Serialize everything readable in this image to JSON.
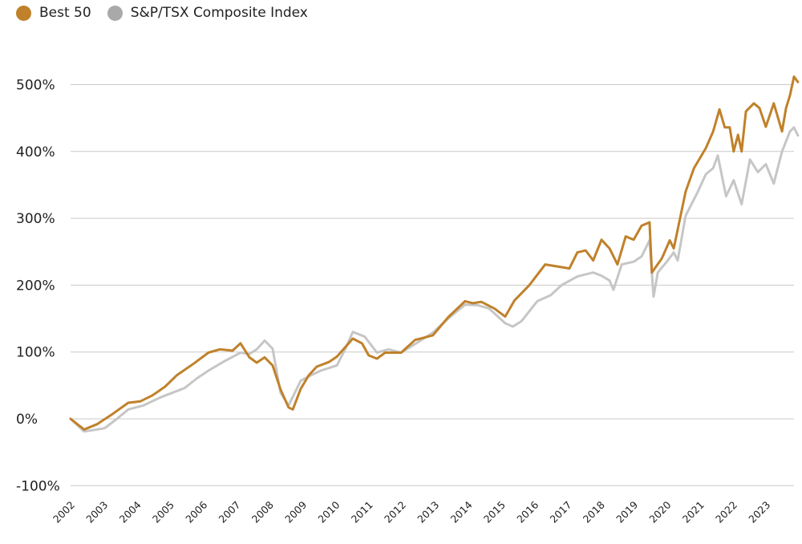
{
  "chart_data": {
    "type": "line",
    "title": "",
    "xlabel": "",
    "ylabel": "",
    "ylim": [
      -100,
      500
    ],
    "yticks": [
      "-100%",
      "0%",
      "100%",
      "200%",
      "300%",
      "400%",
      "500%"
    ],
    "ytick_values": [
      -100,
      0,
      100,
      200,
      300,
      400,
      500
    ],
    "xticks": [
      "2002",
      "2003",
      "2004",
      "2005",
      "2006",
      "2007",
      "2008",
      "2009",
      "2010",
      "2011",
      "2012",
      "2013",
      "2014",
      "2015",
      "2016",
      "2017",
      "2018",
      "2019",
      "2020",
      "2021",
      "2022",
      "2023"
    ],
    "grid": "horizontal",
    "legend_position": "top-left",
    "series": [
      {
        "name": "Best 50",
        "color": "#c0812b",
        "points": [
          [
            2002.0,
            0
          ],
          [
            2002.41,
            -16
          ],
          [
            2002.8,
            -8
          ],
          [
            2003.26,
            7
          ],
          [
            2003.74,
            24
          ],
          [
            2004.1,
            26
          ],
          [
            2004.47,
            35
          ],
          [
            2004.85,
            48
          ],
          [
            2005.2,
            65
          ],
          [
            2005.7,
            82
          ],
          [
            2006.16,
            99
          ],
          [
            2006.5,
            104
          ],
          [
            2006.89,
            102
          ],
          [
            2007.13,
            113
          ],
          [
            2007.4,
            92
          ],
          [
            2007.62,
            84
          ],
          [
            2007.86,
            92
          ],
          [
            2008.1,
            80
          ],
          [
            2008.34,
            44
          ],
          [
            2008.58,
            17
          ],
          [
            2008.71,
            14
          ],
          [
            2008.95,
            45
          ],
          [
            2009.19,
            65
          ],
          [
            2009.43,
            78
          ],
          [
            2009.8,
            85
          ],
          [
            2010.04,
            93
          ],
          [
            2010.52,
            120
          ],
          [
            2010.8,
            113
          ],
          [
            2011.0,
            95
          ],
          [
            2011.25,
            90
          ],
          [
            2011.5,
            99
          ],
          [
            2011.98,
            99
          ],
          [
            2012.4,
            118
          ],
          [
            2012.94,
            125
          ],
          [
            2013.4,
            152
          ],
          [
            2013.91,
            176
          ],
          [
            2014.15,
            173
          ],
          [
            2014.4,
            175
          ],
          [
            2014.8,
            165
          ],
          [
            2015.12,
            153
          ],
          [
            2015.4,
            177
          ],
          [
            2015.85,
            200
          ],
          [
            2016.33,
            231
          ],
          [
            2016.7,
            228
          ],
          [
            2017.06,
            225
          ],
          [
            2017.3,
            249
          ],
          [
            2017.55,
            252
          ],
          [
            2017.78,
            237
          ],
          [
            2018.03,
            268
          ],
          [
            2018.27,
            255
          ],
          [
            2018.51,
            231
          ],
          [
            2018.76,
            273
          ],
          [
            2019.0,
            268
          ],
          [
            2019.24,
            289
          ],
          [
            2019.48,
            294
          ],
          [
            2019.55,
            219
          ],
          [
            2019.85,
            240
          ],
          [
            2020.09,
            267
          ],
          [
            2020.21,
            255
          ],
          [
            2020.57,
            340
          ],
          [
            2020.82,
            375
          ],
          [
            2021.18,
            405
          ],
          [
            2021.4,
            430
          ],
          [
            2021.59,
            463
          ],
          [
            2021.75,
            436
          ],
          [
            2021.9,
            436
          ],
          [
            2022.02,
            400
          ],
          [
            2022.15,
            425
          ],
          [
            2022.26,
            400
          ],
          [
            2022.39,
            460
          ],
          [
            2022.63,
            472
          ],
          [
            2022.8,
            465
          ],
          [
            2022.99,
            437
          ],
          [
            2023.23,
            472
          ],
          [
            2023.48,
            430
          ],
          [
            2023.6,
            465
          ],
          [
            2023.72,
            484
          ],
          [
            2023.84,
            512
          ],
          [
            2023.96,
            504
          ]
        ]
      },
      {
        "name": "S&P/TSX Composite Index",
        "color": "#c6c6c6",
        "points": [
          [
            2002.0,
            0
          ],
          [
            2002.41,
            -19
          ],
          [
            2003.03,
            -14
          ],
          [
            2003.4,
            0
          ],
          [
            2003.74,
            14
          ],
          [
            2004.2,
            20
          ],
          [
            2004.71,
            32
          ],
          [
            2005.44,
            46
          ],
          [
            2005.8,
            60
          ],
          [
            2006.16,
            72
          ],
          [
            2006.6,
            85
          ],
          [
            2007.13,
            99
          ],
          [
            2007.4,
            97
          ],
          [
            2007.62,
            104
          ],
          [
            2007.86,
            117
          ],
          [
            2008.1,
            105
          ],
          [
            2008.34,
            39
          ],
          [
            2008.58,
            20
          ],
          [
            2008.95,
            57
          ],
          [
            2009.25,
            65
          ],
          [
            2009.55,
            72
          ],
          [
            2010.04,
            80
          ],
          [
            2010.3,
            105
          ],
          [
            2010.52,
            130
          ],
          [
            2010.88,
            123
          ],
          [
            2011.25,
            99
          ],
          [
            2011.6,
            104
          ],
          [
            2011.98,
            99
          ],
          [
            2012.5,
            115
          ],
          [
            2012.94,
            129
          ],
          [
            2013.4,
            150
          ],
          [
            2013.91,
            171
          ],
          [
            2014.3,
            170
          ],
          [
            2014.64,
            165
          ],
          [
            2015.12,
            143
          ],
          [
            2015.35,
            138
          ],
          [
            2015.61,
            146
          ],
          [
            2016.09,
            176
          ],
          [
            2016.5,
            185
          ],
          [
            2016.82,
            200
          ],
          [
            2017.3,
            213
          ],
          [
            2017.78,
            219
          ],
          [
            2018.03,
            214
          ],
          [
            2018.27,
            207
          ],
          [
            2018.39,
            193
          ],
          [
            2018.64,
            231
          ],
          [
            2019.0,
            235
          ],
          [
            2019.24,
            243
          ],
          [
            2019.48,
            267
          ],
          [
            2019.6,
            183
          ],
          [
            2019.73,
            219
          ],
          [
            2020.0,
            235
          ],
          [
            2020.21,
            249
          ],
          [
            2020.33,
            237
          ],
          [
            2020.57,
            304
          ],
          [
            2020.94,
            340
          ],
          [
            2021.18,
            366
          ],
          [
            2021.4,
            375
          ],
          [
            2021.54,
            394
          ],
          [
            2021.79,
            333
          ],
          [
            2022.02,
            357
          ],
          [
            2022.26,
            321
          ],
          [
            2022.51,
            388
          ],
          [
            2022.75,
            369
          ],
          [
            2022.99,
            381
          ],
          [
            2023.23,
            352
          ],
          [
            2023.48,
            400
          ],
          [
            2023.72,
            430
          ],
          [
            2023.84,
            436
          ],
          [
            2023.96,
            424
          ]
        ]
      }
    ]
  }
}
